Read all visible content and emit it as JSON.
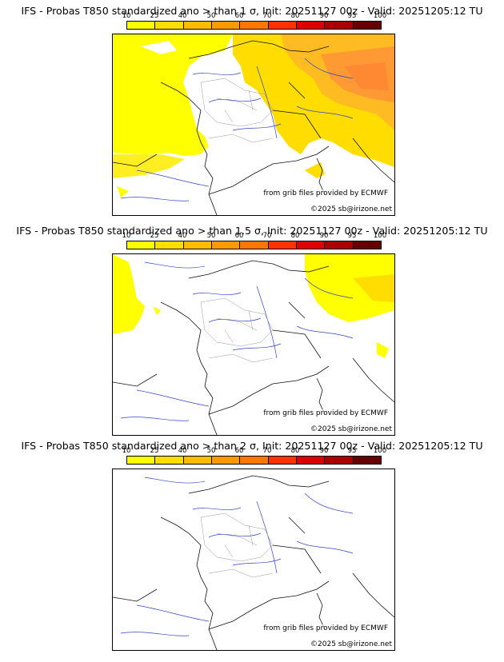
{
  "legend": {
    "levels": [
      "10",
      "25",
      "40",
      "50",
      "60",
      "70",
      "80",
      "90",
      "95",
      "100"
    ],
    "colors": [
      "#ffff00",
      "#ffdd00",
      "#ffbb00",
      "#ff9900",
      "#ff7700",
      "#ff3300",
      "#dd0000",
      "#aa0000",
      "#660000"
    ]
  },
  "panels": [
    {
      "title": "IFS - Probas T850  standardized ano > than 1 σ, Init: 20251127 00z - Valid: 20251205:12 TU",
      "source_credit": "from grib files provided by ECMWF",
      "copyright": "©2025 sb@irizone.net"
    },
    {
      "title": "IFS - Probas T850  standardized ano > than 1.5 σ, Init: 20251127 00z - Valid: 20251205:12 TU",
      "source_credit": "from grib files provided by ECMWF",
      "copyright": "©2025 sb@irizone.net"
    },
    {
      "title": "IFS - Probas T850  standardized ano > than 2 σ, Init: 20251127 00z - Valid: 20251205:12 TU",
      "source_credit": "from grib files provided by ECMWF",
      "copyright": "©2025 sb@irizone.net"
    }
  ]
}
